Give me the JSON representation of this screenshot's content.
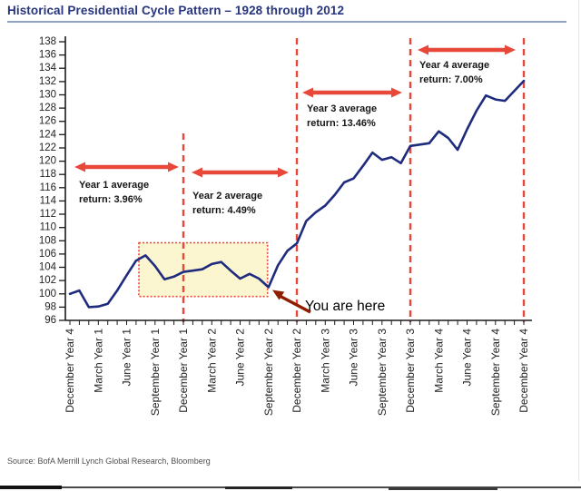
{
  "page": {
    "title": "Historical Presidential Cycle Pattern – 1928 through 2012",
    "source": "Source: BofA Merrill Lynch Global Research, Bloomberg"
  },
  "chart_data": {
    "type": "line",
    "title": "Historical Presidential Cycle Pattern – 1928 through 2012",
    "ylim": [
      96,
      138
    ],
    "y_tick_step": 2,
    "x_tick_labels": [
      "December Year 4",
      "March Year 1",
      "June Year 1",
      "September Year 1",
      "December Year 1",
      "March Year 2",
      "June Year 2",
      "September Year 2",
      "December Year 2",
      "March Year 3",
      "June Year 3",
      "September Year 3",
      "December Year 3",
      "March Year 4",
      "June Year 4",
      "September Year 4",
      "December Year 4"
    ],
    "x_months_per_tick_label": 3,
    "values": [
      100,
      100.5,
      98,
      98.1,
      98.5,
      100.5,
      102.8,
      105,
      105.8,
      104.2,
      102.2,
      102.6,
      103.3,
      103.5,
      103.7,
      104.5,
      104.8,
      103.5,
      102.3,
      103,
      102.3,
      101,
      104.3,
      106.5,
      107.6,
      111,
      112.3,
      113.3,
      114.9,
      116.8,
      117.4,
      119.3,
      121.3,
      120.2,
      120.6,
      119.7,
      122.3,
      122.5,
      122.7,
      124.5,
      123.5,
      121.7,
      124.8,
      127.6,
      129.9,
      129.3,
      129.1,
      130.6,
      132.1
    ],
    "dashed_vertical_lines_months": [
      12,
      24,
      36,
      48
    ],
    "highlight_box": {
      "from_month": 7.3,
      "to_month": 20.9,
      "from_value": 99.6,
      "to_value": 107.7
    },
    "annotations": [
      {
        "line1": "Year 1 average",
        "line2": "return: 3.96%"
      },
      {
        "line1": "Year 2 average",
        "line2": "return: 4.49%"
      },
      {
        "line1": "Year 3 average",
        "line2": "return: 13.46%"
      },
      {
        "line1": "Year 4 average",
        "line2": "return: 7.00%"
      }
    ],
    "you_are_here_label": "You are here",
    "colors": {
      "line": "#1F2C7E",
      "red": "#E8483A",
      "dark_red_arrow": "#8F1D00",
      "highlight_fill": "#FBF5D0",
      "title_blue": "#27357E"
    }
  }
}
